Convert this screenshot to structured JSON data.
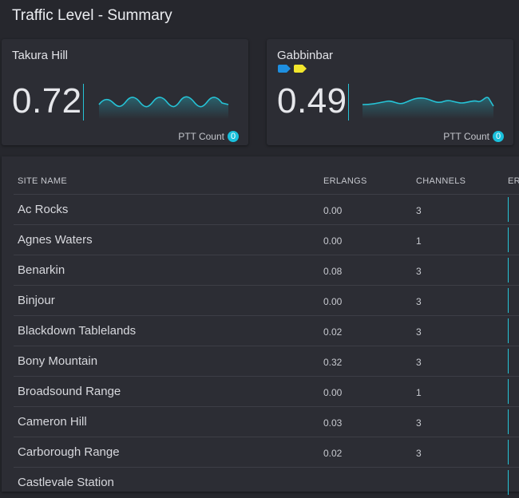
{
  "page": {
    "title": "Traffic Level - Summary"
  },
  "colors": {
    "accent": "#26c3d6",
    "tag_blue": "#1e8fe0",
    "tag_yellow": "#f2e62c"
  },
  "cards": [
    {
      "title": "Takura Hill",
      "value": "0.72",
      "ptt_label": "PTT Count",
      "ptt_count": "0",
      "tags": []
    },
    {
      "title": "Gabbinbar",
      "value": "0.49",
      "ptt_label": "PTT Count",
      "ptt_count": "0",
      "tags": [
        {
          "icon": "tag-blue-icon",
          "color": "#1e8fe0"
        },
        {
          "icon": "tag-yellow-icon",
          "color": "#f2e62c"
        }
      ]
    }
  ],
  "table": {
    "headers": {
      "site": "SITE NAME",
      "erlangs": "ERLANGS",
      "channels": "CHANNELS",
      "extra": "ER"
    },
    "rows": [
      {
        "site": "Ac Rocks",
        "erlangs": "0.00",
        "channels": "3"
      },
      {
        "site": "Agnes Waters",
        "erlangs": "0.00",
        "channels": "1"
      },
      {
        "site": "Benarkin",
        "erlangs": "0.08",
        "channels": "3"
      },
      {
        "site": "Binjour",
        "erlangs": "0.00",
        "channels": "3"
      },
      {
        "site": "Blackdown Tablelands",
        "erlangs": "0.02",
        "channels": "3"
      },
      {
        "site": "Bony Mountain",
        "erlangs": "0.32",
        "channels": "3"
      },
      {
        "site": "Broadsound Range",
        "erlangs": "0.00",
        "channels": "1"
      },
      {
        "site": "Cameron Hill",
        "erlangs": "0.03",
        "channels": "3"
      },
      {
        "site": "Carborough Range",
        "erlangs": "0.02",
        "channels": "3"
      },
      {
        "site": "Castlevale Station",
        "erlangs": "",
        "channels": ""
      }
    ]
  }
}
